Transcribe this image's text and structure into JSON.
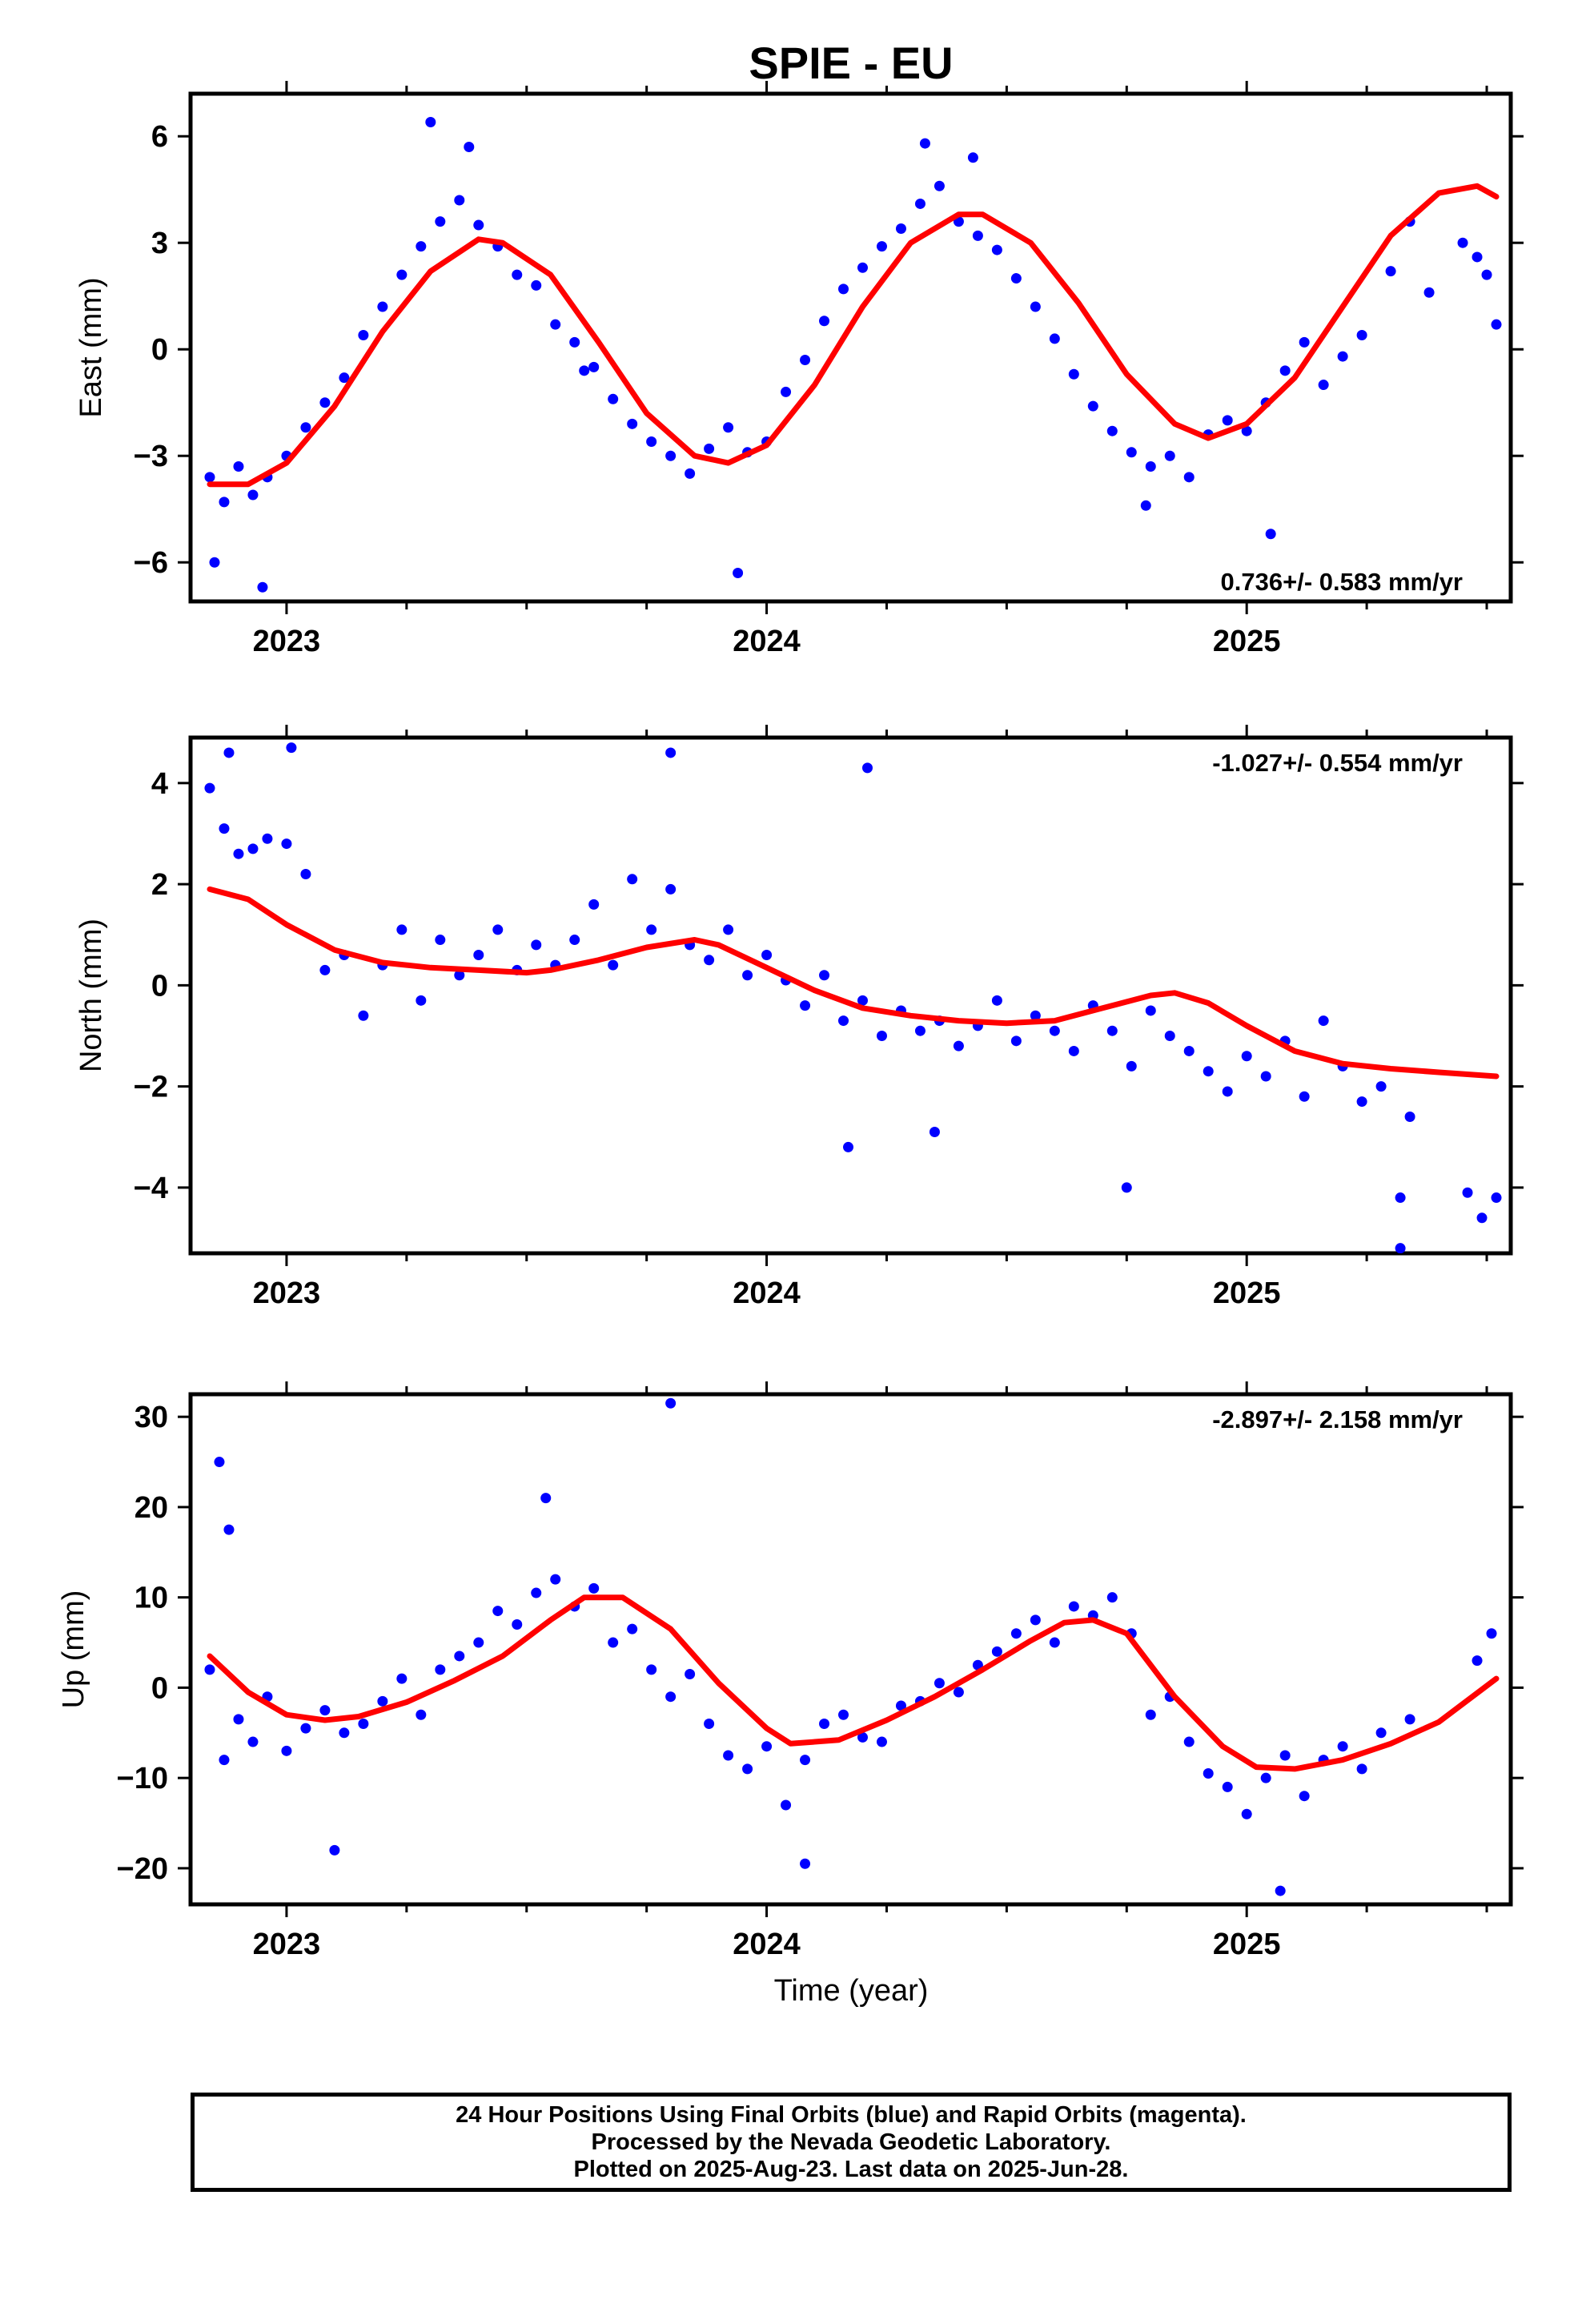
{
  "figure": {
    "title": "SPIE - EU",
    "xlabel": "Time (year)",
    "footer": [
      "24 Hour Positions Using Final Orbits (blue) and Rapid Orbits (magenta).",
      "Processed by the Nevada Geodetic Laboratory.",
      "Plotted on 2025-Aug-23. Last data on 2025-Jun-28."
    ],
    "colors": {
      "points": "#0000ff",
      "fit": "#ff0000",
      "frame": "#000000"
    }
  },
  "chart_data": [
    {
      "type": "scatter",
      "panel": "east",
      "title": "SPIE - EU",
      "ylabel": "East (mm)",
      "xlabel": "",
      "rate": "0.736+/- 0.583 mm/yr",
      "rate_position": "bottom-right",
      "xlim": [
        2022.8,
        2025.55
      ],
      "ylim": [
        -7.1,
        7.2
      ],
      "xticks": [
        2023,
        2024,
        2025
      ],
      "xtick_labels": [
        "2023",
        "2024",
        "2025"
      ],
      "yticks": [
        -6,
        -3,
        0,
        3,
        6
      ],
      "ytick_labels": [
        "−6",
        "−3",
        "0",
        "3",
        "6"
      ],
      "series": [
        {
          "kind": "points",
          "x": [
            2022.84,
            2022.87,
            2022.9,
            2022.93,
            2022.96,
            2023.0,
            2023.04,
            2023.08,
            2023.12,
            2023.16,
            2023.2,
            2023.24,
            2023.28,
            2023.32,
            2023.36,
            2023.4,
            2023.44,
            2023.48,
            2023.52,
            2023.56,
            2023.6,
            2023.64,
            2023.68,
            2023.72,
            2023.76,
            2023.8,
            2023.84,
            2023.88,
            2023.92,
            2023.96,
            2024.0,
            2024.04,
            2024.08,
            2024.12,
            2024.16,
            2024.2,
            2024.24,
            2024.28,
            2024.32,
            2024.36,
            2024.4,
            2024.44,
            2024.48,
            2024.52,
            2024.56,
            2024.6,
            2024.64,
            2024.68,
            2024.72,
            2024.76,
            2024.8,
            2024.84,
            2024.88,
            2024.92,
            2024.96,
            2025.0,
            2025.04,
            2025.08,
            2025.12,
            2025.16,
            2025.2,
            2025.24,
            2025.3,
            2025.34,
            2025.38,
            2025.45,
            2025.48,
            2025.5,
            2025.52,
            2022.85,
            2022.95,
            2023.3,
            2023.38,
            2023.62,
            2023.94,
            2024.33,
            2024.43,
            2024.79,
            2025.05
          ],
          "y": [
            -3.6,
            -4.3,
            -3.3,
            -4.1,
            -3.6,
            -3.0,
            -2.2,
            -1.5,
            -0.8,
            0.4,
            1.2,
            2.1,
            2.9,
            3.6,
            4.2,
            3.5,
            2.9,
            2.1,
            1.8,
            0.7,
            0.2,
            -0.5,
            -1.4,
            -2.1,
            -2.6,
            -3.0,
            -3.5,
            -2.8,
            -2.2,
            -2.9,
            -2.6,
            -1.2,
            -0.3,
            0.8,
            1.7,
            2.3,
            2.9,
            3.4,
            4.1,
            4.6,
            3.6,
            3.2,
            2.8,
            2.0,
            1.2,
            0.3,
            -0.7,
            -1.6,
            -2.3,
            -2.9,
            -3.3,
            -3.0,
            -3.6,
            -2.4,
            -2.0,
            -2.3,
            -1.5,
            -0.6,
            0.2,
            -1.0,
            -0.2,
            0.4,
            2.2,
            3.6,
            1.6,
            3.0,
            2.6,
            2.1,
            0.7,
            -6.0,
            -6.7,
            6.4,
            5.7,
            -0.6,
            -6.3,
            5.8,
            5.4,
            -4.4,
            -5.2
          ]
        },
        {
          "kind": "fit",
          "x": [
            2022.84,
            2022.92,
            2023.0,
            2023.1,
            2023.2,
            2023.3,
            2023.4,
            2023.45,
            2023.55,
            2023.65,
            2023.75,
            2023.85,
            2023.92,
            2024.0,
            2024.1,
            2024.2,
            2024.3,
            2024.4,
            2024.45,
            2024.55,
            2024.65,
            2024.75,
            2024.85,
            2024.92,
            2025.0,
            2025.1,
            2025.2,
            2025.3,
            2025.4,
            2025.48,
            2025.52
          ],
          "y": [
            -3.8,
            -3.8,
            -3.2,
            -1.6,
            0.5,
            2.2,
            3.1,
            3.0,
            2.1,
            0.2,
            -1.8,
            -3.0,
            -3.2,
            -2.7,
            -1.0,
            1.2,
            3.0,
            3.8,
            3.8,
            3.0,
            1.3,
            -0.7,
            -2.1,
            -2.5,
            -2.1,
            -0.8,
            1.2,
            3.2,
            4.4,
            4.6,
            4.3
          ]
        }
      ]
    },
    {
      "type": "scatter",
      "panel": "north",
      "title": "",
      "ylabel": "North (mm)",
      "xlabel": "",
      "rate": "-1.027+/- 0.554 mm/yr",
      "rate_position": "top-right",
      "xlim": [
        2022.8,
        2025.55
      ],
      "ylim": [
        -5.3,
        4.9
      ],
      "xticks": [
        2023,
        2024,
        2025
      ],
      "xtick_labels": [
        "2023",
        "2024",
        "2025"
      ],
      "yticks": [
        -4,
        -2,
        0,
        2,
        4
      ],
      "ytick_labels": [
        "−4",
        "−2",
        "0",
        "2",
        "4"
      ],
      "series": [
        {
          "kind": "points",
          "x": [
            2022.84,
            2022.87,
            2022.9,
            2022.93,
            2022.96,
            2023.0,
            2023.04,
            2023.08,
            2023.12,
            2023.16,
            2023.2,
            2023.24,
            2023.28,
            2023.32,
            2023.36,
            2023.4,
            2023.44,
            2023.48,
            2023.52,
            2023.56,
            2023.6,
            2023.64,
            2023.68,
            2023.72,
            2023.76,
            2023.8,
            2023.84,
            2023.88,
            2023.92,
            2023.96,
            2024.0,
            2024.04,
            2024.08,
            2024.12,
            2024.16,
            2024.2,
            2024.24,
            2024.28,
            2024.32,
            2024.36,
            2024.4,
            2024.44,
            2024.48,
            2024.52,
            2024.56,
            2024.6,
            2024.64,
            2024.68,
            2024.72,
            2024.76,
            2024.8,
            2024.84,
            2024.88,
            2024.92,
            2024.96,
            2025.0,
            2025.04,
            2025.08,
            2025.12,
            2025.16,
            2025.2,
            2025.24,
            2025.28,
            2025.32,
            2025.34,
            2025.46,
            2025.49,
            2025.52,
            2022.88,
            2023.01,
            2023.8,
            2024.17,
            2024.21,
            2024.35,
            2024.75,
            2025.32
          ],
          "y": [
            3.9,
            3.1,
            2.6,
            2.7,
            2.9,
            2.8,
            2.2,
            0.3,
            0.6,
            -0.6,
            0.4,
            1.1,
            -0.3,
            0.9,
            0.2,
            0.6,
            1.1,
            0.3,
            0.8,
            0.4,
            0.9,
            1.6,
            0.4,
            2.1,
            1.1,
            1.9,
            0.8,
            0.5,
            1.1,
            0.2,
            0.6,
            0.1,
            -0.4,
            0.2,
            -0.7,
            -0.3,
            -1.0,
            -0.5,
            -0.9,
            -0.7,
            -1.2,
            -0.8,
            -0.3,
            -1.1,
            -0.6,
            -0.9,
            -1.3,
            -0.4,
            -0.9,
            -1.6,
            -0.5,
            -1.0,
            -1.3,
            -1.7,
            -2.1,
            -1.4,
            -1.8,
            -1.1,
            -2.2,
            -0.7,
            -1.6,
            -2.3,
            -2.0,
            -4.2,
            -2.6,
            -4.1,
            -4.6,
            -4.2,
            4.6,
            4.7,
            4.6,
            -3.2,
            4.3,
            -2.9,
            -4.0,
            -5.2
          ]
        },
        {
          "kind": "fit",
          "x": [
            2022.84,
            2022.92,
            2023.0,
            2023.1,
            2023.2,
            2023.3,
            2023.4,
            2023.5,
            2023.55,
            2023.65,
            2023.75,
            2023.85,
            2023.9,
            2024.0,
            2024.1,
            2024.2,
            2024.3,
            2024.4,
            2024.5,
            2024.6,
            2024.7,
            2024.8,
            2024.85,
            2024.92,
            2025.0,
            2025.1,
            2025.2,
            2025.3,
            2025.4,
            2025.52
          ],
          "y": [
            1.9,
            1.7,
            1.2,
            0.7,
            0.45,
            0.35,
            0.3,
            0.25,
            0.3,
            0.5,
            0.75,
            0.9,
            0.8,
            0.35,
            -0.1,
            -0.45,
            -0.6,
            -0.7,
            -0.75,
            -0.7,
            -0.45,
            -0.2,
            -0.15,
            -0.35,
            -0.8,
            -1.3,
            -1.55,
            -1.65,
            -1.72,
            -1.8
          ]
        }
      ]
    },
    {
      "type": "scatter",
      "panel": "up",
      "title": "",
      "ylabel": "Up (mm)",
      "xlabel": "Time (year)",
      "rate": "-2.897+/- 2.158 mm/yr",
      "rate_position": "top-right",
      "xlim": [
        2022.8,
        2025.55
      ],
      "ylim": [
        -24,
        32.5
      ],
      "xticks": [
        2023,
        2024,
        2025
      ],
      "xtick_labels": [
        "2023",
        "2024",
        "2025"
      ],
      "yticks": [
        -20,
        -10,
        0,
        10,
        20,
        30
      ],
      "ytick_labels": [
        "−20",
        "−10",
        "0",
        "10",
        "20",
        "30"
      ],
      "series": [
        {
          "kind": "points",
          "x": [
            2022.84,
            2022.87,
            2022.9,
            2022.93,
            2022.96,
            2023.0,
            2023.04,
            2023.08,
            2023.12,
            2023.16,
            2023.2,
            2023.24,
            2023.28,
            2023.32,
            2023.36,
            2023.4,
            2023.44,
            2023.48,
            2023.52,
            2023.56,
            2023.6,
            2023.64,
            2023.68,
            2023.72,
            2023.76,
            2023.8,
            2023.84,
            2023.88,
            2023.92,
            2023.96,
            2024.0,
            2024.04,
            2024.08,
            2024.12,
            2024.16,
            2024.2,
            2024.24,
            2024.28,
            2024.32,
            2024.36,
            2024.4,
            2024.44,
            2024.48,
            2024.52,
            2024.56,
            2024.6,
            2024.64,
            2024.68,
            2024.72,
            2024.76,
            2024.8,
            2024.84,
            2024.88,
            2024.92,
            2024.96,
            2025.0,
            2025.04,
            2025.08,
            2025.12,
            2025.16,
            2025.2,
            2025.24,
            2025.28,
            2025.34,
            2025.48,
            2025.51,
            2022.86,
            2022.88,
            2023.1,
            2023.54,
            2023.8,
            2024.08,
            2025.07
          ],
          "y": [
            2.0,
            -8.0,
            -3.5,
            -6.0,
            -1.0,
            -7.0,
            -4.5,
            -2.5,
            -5.0,
            -4.0,
            -1.5,
            1.0,
            -3.0,
            2.0,
            3.5,
            5.0,
            8.5,
            7.0,
            10.5,
            12.0,
            9.0,
            11.0,
            5.0,
            6.5,
            2.0,
            -1.0,
            1.5,
            -4.0,
            -7.5,
            -9.0,
            -6.5,
            -13.0,
            -8.0,
            -4.0,
            -3.0,
            -5.5,
            -6.0,
            -2.0,
            -1.5,
            0.5,
            -0.5,
            2.5,
            4.0,
            6.0,
            7.5,
            5.0,
            9.0,
            8.0,
            10.0,
            6.0,
            -3.0,
            -1.0,
            -6.0,
            -9.5,
            -11.0,
            -14.0,
            -10.0,
            -7.5,
            -12.0,
            -8.0,
            -6.5,
            -9.0,
            -5.0,
            -3.5,
            3.0,
            6.0,
            25.0,
            17.5,
            -18.0,
            21.0,
            31.5,
            -19.5,
            -22.5
          ]
        },
        {
          "kind": "fit",
          "x": [
            2022.84,
            2022.92,
            2023.0,
            2023.08,
            2023.15,
            2023.25,
            2023.35,
            2023.45,
            2023.55,
            2023.62,
            2023.7,
            2023.8,
            2023.9,
            2024.0,
            2024.05,
            2024.15,
            2024.25,
            2024.35,
            2024.45,
            2024.55,
            2024.62,
            2024.68,
            2024.75,
            2024.85,
            2024.95,
            2025.02,
            2025.1,
            2025.2,
            2025.3,
            2025.4,
            2025.52
          ],
          "y": [
            3.5,
            -0.5,
            -3.0,
            -3.6,
            -3.2,
            -1.6,
            0.8,
            3.5,
            7.5,
            10.0,
            10.0,
            6.5,
            0.5,
            -4.5,
            -6.2,
            -5.8,
            -3.6,
            -1.0,
            2.0,
            5.2,
            7.2,
            7.5,
            6.0,
            -1.0,
            -6.5,
            -8.8,
            -9.0,
            -8.0,
            -6.2,
            -3.8,
            1.0
          ]
        }
      ]
    }
  ]
}
